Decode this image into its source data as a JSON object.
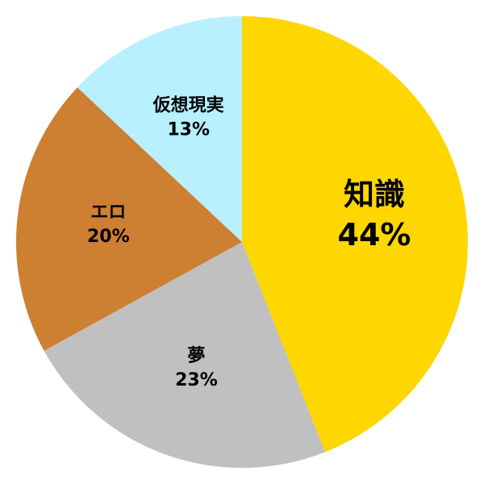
{
  "chart_data": {
    "type": "pie",
    "categories": [
      "知識",
      "夢",
      "エロ",
      "仮想現実"
    ],
    "values": [
      44,
      23,
      20,
      13
    ],
    "value_labels": [
      "44%",
      "23%",
      "20%",
      "13%"
    ],
    "colors": [
      "#ffd700",
      "#c0c0c0",
      "#cd7f32",
      "#b8f0ff"
    ]
  }
}
